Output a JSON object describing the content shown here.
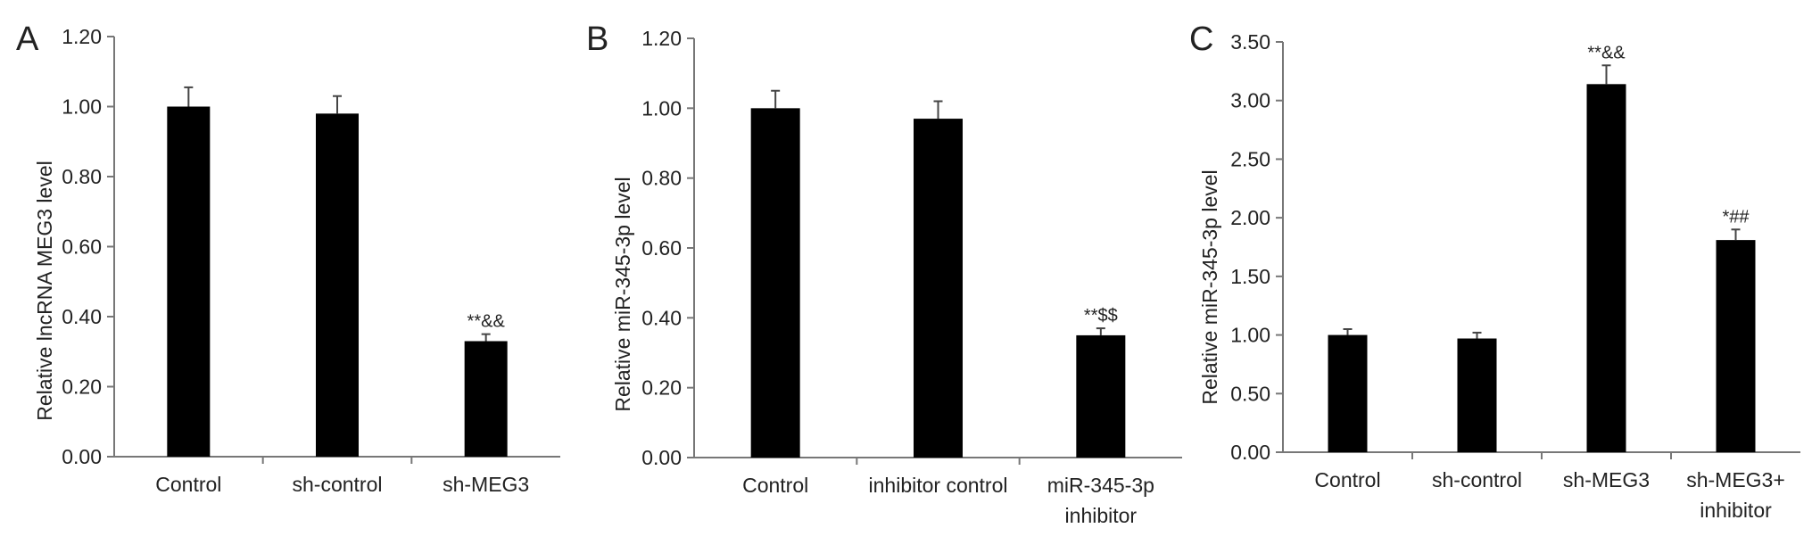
{
  "chart_data": [
    {
      "panel": "A",
      "type": "bar",
      "ylabel": "Relative lncRNA MEG3 level",
      "ylim": [
        0,
        1.2
      ],
      "yticks": [
        "0.00",
        "0.20",
        "0.40",
        "0.60",
        "0.80",
        "1.00",
        "1.20"
      ],
      "categories": [
        [
          "Control"
        ],
        [
          "sh-control"
        ],
        [
          "sh-MEG3"
        ]
      ],
      "values": [
        1.0,
        0.98,
        0.33
      ],
      "errors": [
        0.055,
        0.05,
        0.02
      ],
      "annotations": [
        "",
        "",
        "**&&"
      ],
      "grid": false
    },
    {
      "panel": "B",
      "type": "bar",
      "ylabel": "Relative miR-345-3p level",
      "ylim": [
        0,
        1.2
      ],
      "yticks": [
        "0.00",
        "0.20",
        "0.40",
        "0.60",
        "0.80",
        "1.00",
        "1.20"
      ],
      "categories": [
        [
          "Control"
        ],
        [
          "inhibitor control"
        ],
        [
          "miR-345-3p",
          "inhibitor"
        ]
      ],
      "values": [
        1.0,
        0.97,
        0.35
      ],
      "errors": [
        0.05,
        0.05,
        0.02
      ],
      "annotations": [
        "",
        "",
        "**$$"
      ],
      "grid": false
    },
    {
      "panel": "C",
      "type": "bar",
      "ylabel": "Relative miR-345-3p level",
      "ylim": [
        0,
        3.5
      ],
      "yticks": [
        "0.00",
        "0.50",
        "1.00",
        "1.50",
        "2.00",
        "2.50",
        "3.00",
        "3.50"
      ],
      "categories": [
        [
          "Control"
        ],
        [
          "sh-control"
        ],
        [
          "sh-MEG3"
        ],
        [
          "sh-MEG3+",
          "inhibitor"
        ]
      ],
      "values": [
        1.0,
        0.97,
        3.14,
        1.81
      ],
      "errors": [
        0.05,
        0.05,
        0.16,
        0.09
      ],
      "annotations": [
        "",
        "",
        "**&&",
        "*##"
      ],
      "grid": false
    }
  ]
}
